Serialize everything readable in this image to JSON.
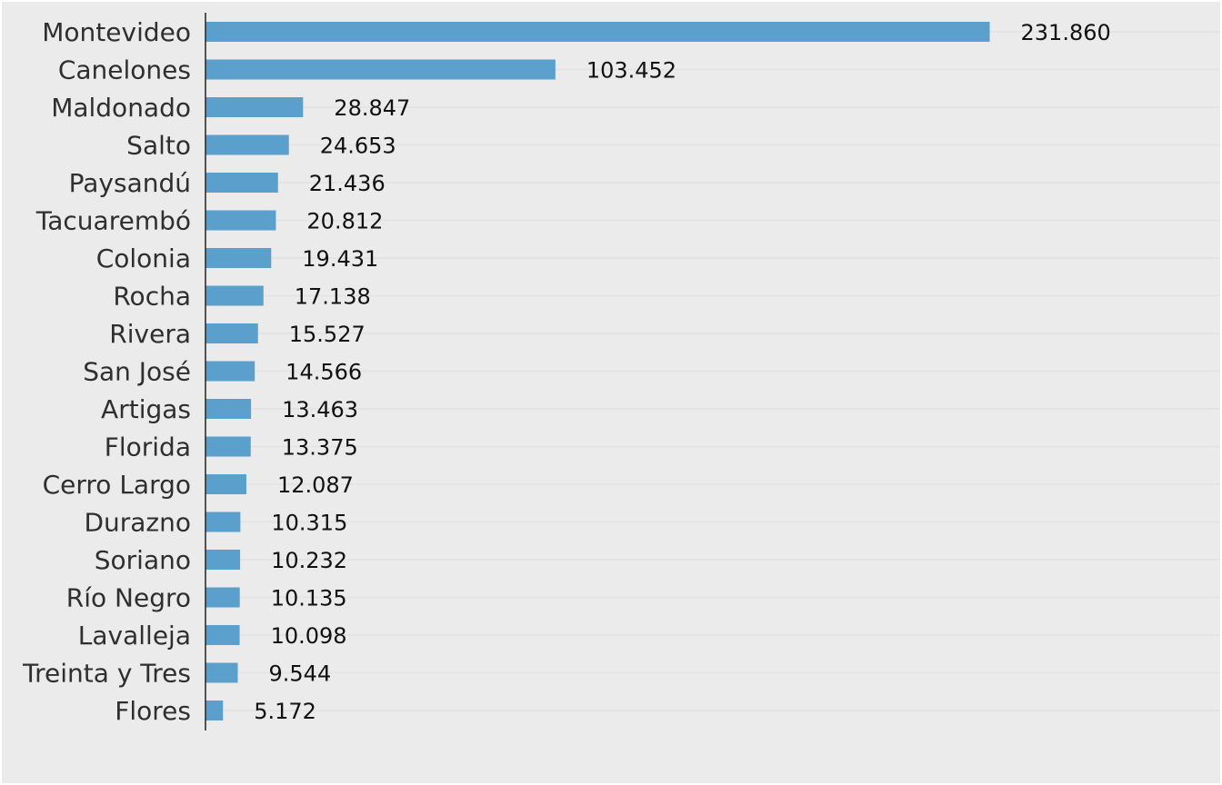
{
  "chart_data": {
    "type": "bar",
    "orientation": "horizontal",
    "title": "",
    "xlabel": "",
    "ylabel": "",
    "grid": true,
    "legend": "none",
    "bar_color": "#5b9fcd",
    "background_color": "#ebebeb",
    "xlim": [
      0,
      300000
    ],
    "categories": [
      "Montevideo",
      "Canelones",
      "Maldonado",
      "Salto",
      "Paysandú",
      "Tacuarembó",
      "Colonia",
      "Rocha",
      "Rivera",
      "San José",
      "Artigas",
      "Florida",
      "Cerro Largo",
      "Durazno",
      "Soriano",
      "Río Negro",
      "Lavalleja",
      "Treinta y Tres",
      "Flores"
    ],
    "values": [
      231860,
      103452,
      28847,
      24653,
      21436,
      20812,
      19431,
      17138,
      15527,
      14566,
      13463,
      13375,
      12087,
      10315,
      10232,
      10135,
      10098,
      9544,
      5172
    ],
    "value_labels": [
      "231.860",
      "103.452",
      "28.847",
      "24.653",
      "21.436",
      "20.812",
      "19.431",
      "17.138",
      "15.527",
      "14.566",
      "13.463",
      "13.375",
      "12.087",
      "10.315",
      "10.232",
      "10.135",
      "10.098",
      "9.544",
      "5.172"
    ]
  }
}
